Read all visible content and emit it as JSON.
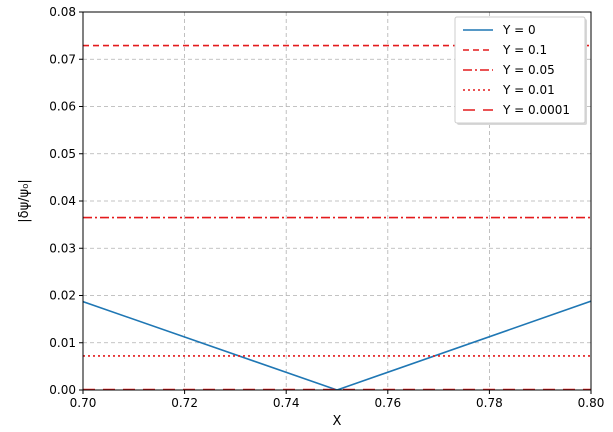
{
  "chart_data": {
    "type": "line",
    "xlabel": "X",
    "ylabel": "|δψ/ψ₀|",
    "xlim": [
      0.7,
      0.8
    ],
    "ylim": [
      0.0,
      0.08
    ],
    "x_ticks": [
      0.7,
      0.72,
      0.74,
      0.76,
      0.78,
      0.8
    ],
    "y_ticks": [
      0.0,
      0.01,
      0.02,
      0.03,
      0.04,
      0.05,
      0.06,
      0.07,
      0.08
    ],
    "x_tick_labels": [
      "0.70",
      "0.72",
      "0.74",
      "0.76",
      "0.78",
      "0.80"
    ],
    "y_tick_labels": [
      "0.00",
      "0.01",
      "0.02",
      "0.03",
      "0.04",
      "0.05",
      "0.06",
      "0.07",
      "0.08"
    ],
    "grid": true,
    "legend_position": "top-right",
    "series": [
      {
        "name": "Y = 0",
        "color": "#1f77b4",
        "dash": "solid",
        "x": [
          0.7,
          0.75,
          0.8
        ],
        "y": [
          0.0187,
          0.0,
          0.0188
        ]
      },
      {
        "name": "Y = 0.1",
        "color": "#e41a1c",
        "dash": "dashed",
        "x": [
          0.7,
          0.8
        ],
        "y": [
          0.0729,
          0.0729
        ]
      },
      {
        "name": "Y = 0.05",
        "color": "#e41a1c",
        "dash": "dashdot",
        "x": [
          0.7,
          0.8
        ],
        "y": [
          0.0365,
          0.0365
        ]
      },
      {
        "name": "Y = 0.01",
        "color": "#e41a1c",
        "dash": "dotted",
        "x": [
          0.7,
          0.8
        ],
        "y": [
          0.0072,
          0.0072
        ]
      },
      {
        "name": "Y = 0.0001",
        "color": "#e41a1c",
        "dash": "longdash",
        "x": [
          0.7,
          0.8
        ],
        "y": [
          0.0001,
          0.0001
        ]
      }
    ]
  }
}
